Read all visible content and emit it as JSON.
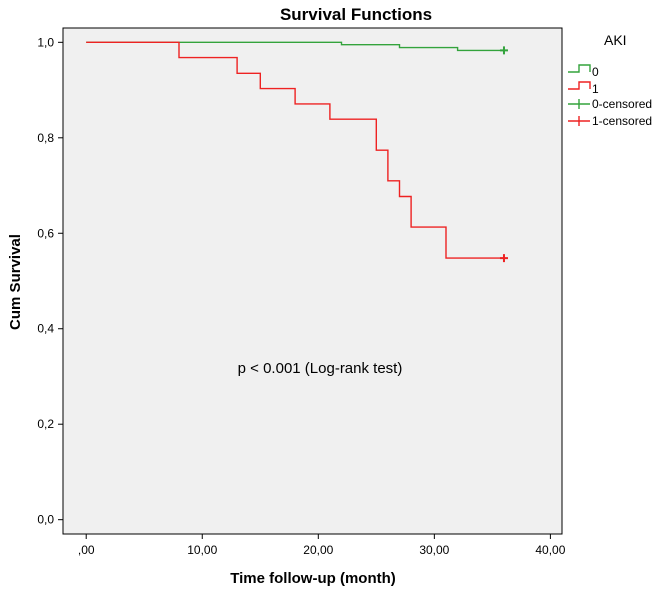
{
  "chart_data": {
    "type": "line",
    "step": true,
    "title": "Survival Functions",
    "xlabel": "Time follow-up (month)",
    "ylabel": "Cum Survival",
    "xlim": [
      -2,
      41
    ],
    "ylim": [
      -0.03,
      1.03
    ],
    "x_ticks": [
      0,
      10,
      20,
      30,
      40
    ],
    "x_tick_labels": [
      ",00",
      "10,00",
      "20,00",
      "30,00",
      "40,00"
    ],
    "y_ticks": [
      0,
      0.2,
      0.4,
      0.6,
      0.8,
      1.0
    ],
    "y_tick_labels": [
      "0,0",
      "0,2",
      "0,4",
      "0,6",
      "0,8",
      "1,0"
    ],
    "grid": false,
    "plot_background": "#f0f0f0",
    "legend": {
      "title": "AKI",
      "placement": "right",
      "entries": [
        {
          "label": "0",
          "kind": "step",
          "color": "#33a33c"
        },
        {
          "label": "1",
          "kind": "step",
          "color": "#ee2222"
        },
        {
          "label": "0-censored",
          "kind": "censor",
          "color": "#33a33c"
        },
        {
          "label": "1-censored",
          "kind": "censor",
          "color": "#ee2222"
        }
      ]
    },
    "annotation": "p < 0.001 (Log-rank test)",
    "series": [
      {
        "name": "0",
        "color": "#33a33c",
        "x": [
          0,
          22,
          27,
          32,
          36
        ],
        "y": [
          1.0,
          0.995,
          0.989,
          0.983,
          0.983
        ],
        "censored": [
          {
            "x": 36,
            "y": 0.983
          }
        ]
      },
      {
        "name": "1",
        "color": "#ee2222",
        "x": [
          0,
          8,
          13,
          15,
          18,
          21,
          25,
          26,
          27,
          28,
          31,
          36
        ],
        "y": [
          1.0,
          0.968,
          0.935,
          0.903,
          0.871,
          0.839,
          0.774,
          0.71,
          0.677,
          0.613,
          0.548,
          0.548
        ],
        "censored": [
          {
            "x": 36,
            "y": 0.548
          }
        ]
      }
    ]
  }
}
